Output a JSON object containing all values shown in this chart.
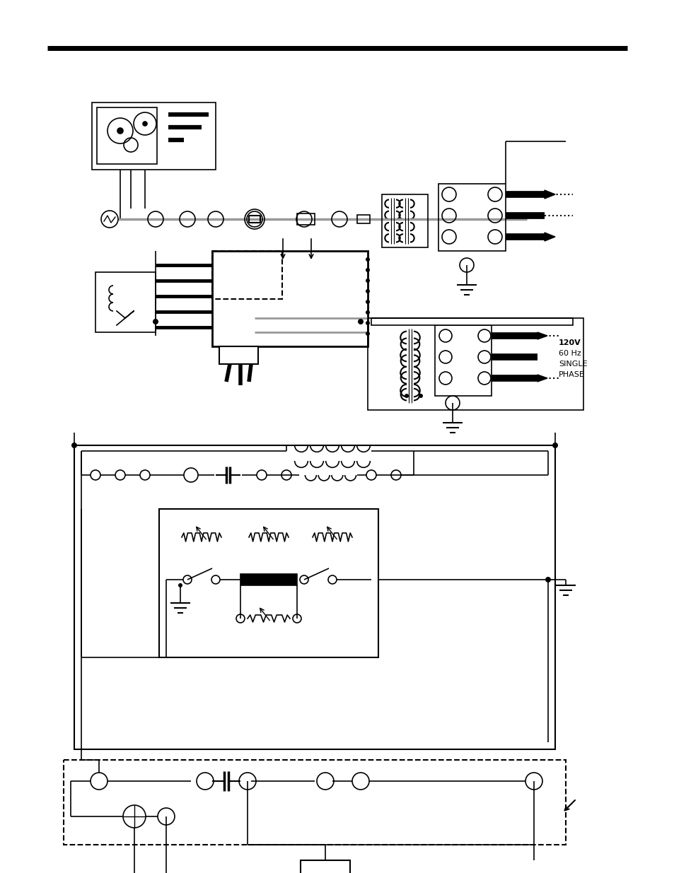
{
  "bg_color": "#ffffff",
  "line_color": "#000000",
  "gray_line_color": "#999999",
  "page_width": 9.54,
  "page_height": 12.35,
  "text_120v": "120V\n60 Hz\nSINGLE\nPHASE"
}
